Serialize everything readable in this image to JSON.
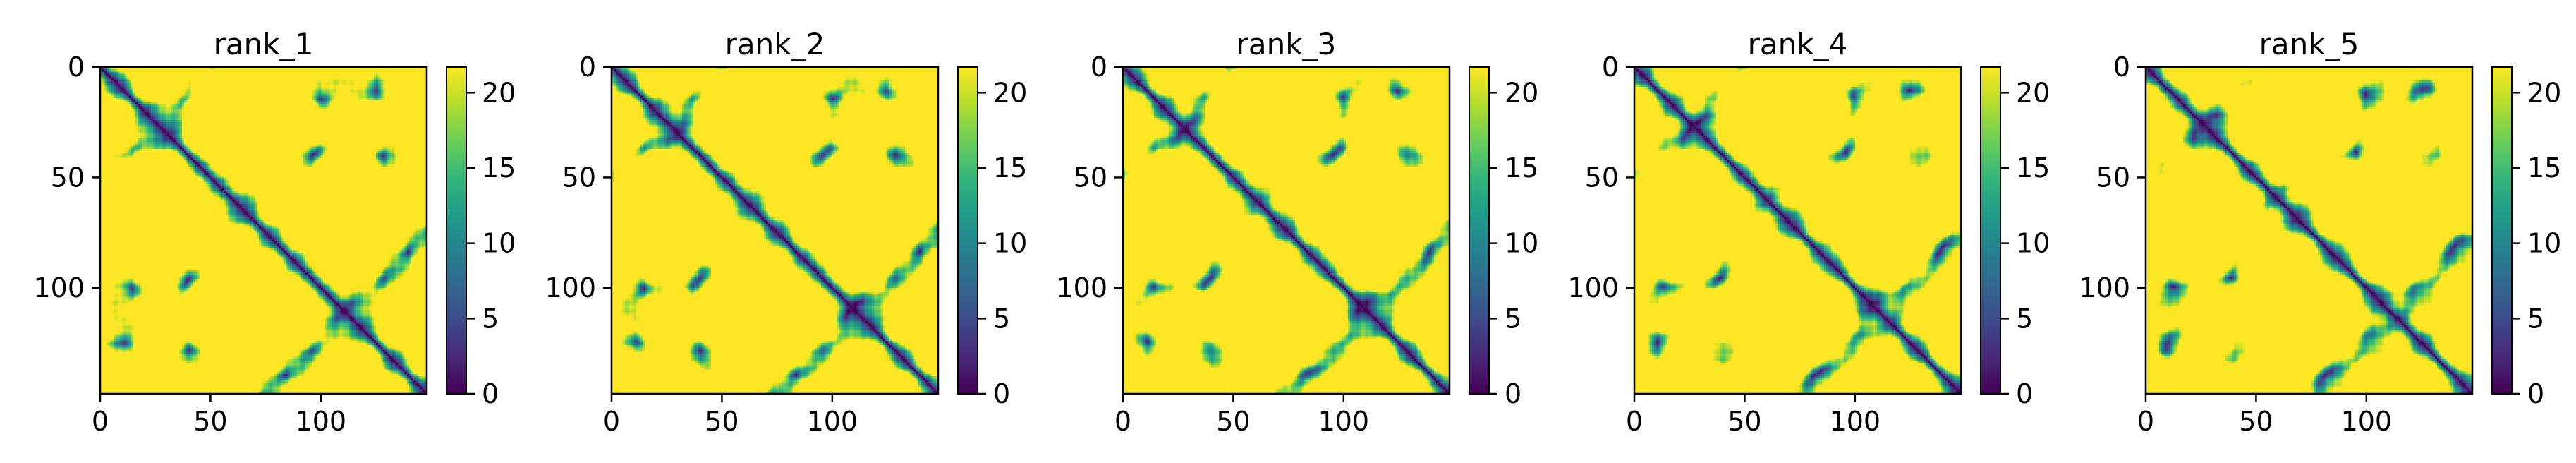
{
  "figure": {
    "panel_count": 5
  },
  "chart_data": [
    {
      "type": "heatmap",
      "title": "rank_1",
      "xlabel": "",
      "ylabel": "",
      "xlim": [
        0,
        148
      ],
      "ylim": [
        148,
        0
      ],
      "xticks": [
        0,
        50,
        100
      ],
      "yticks": [
        0,
        50,
        100
      ],
      "colorbar": {
        "min": 0,
        "max": 21.7,
        "ticks": [
          0,
          5,
          10,
          15,
          20
        ],
        "colormap": "viridis"
      },
      "description_values": "symmetric pairwise distance map, ~0 on diagonal, saturating at ~22"
    },
    {
      "type": "heatmap",
      "title": "rank_2",
      "xlabel": "",
      "ylabel": "",
      "xlim": [
        0,
        148
      ],
      "ylim": [
        148,
        0
      ],
      "xticks": [
        0,
        50,
        100
      ],
      "yticks": [
        0,
        50,
        100
      ],
      "colorbar": {
        "min": 0,
        "max": 21.7,
        "ticks": [
          0,
          5,
          10,
          15,
          20
        ],
        "colormap": "viridis"
      }
    },
    {
      "type": "heatmap",
      "title": "rank_3",
      "xlabel": "",
      "ylabel": "",
      "xlim": [
        0,
        148
      ],
      "ylim": [
        148,
        0
      ],
      "xticks": [
        0,
        50,
        100
      ],
      "yticks": [
        0,
        50,
        100
      ],
      "colorbar": {
        "min": 0,
        "max": 21.7,
        "ticks": [
          0,
          5,
          10,
          15,
          20
        ],
        "colormap": "viridis"
      }
    },
    {
      "type": "heatmap",
      "title": "rank_4",
      "xlabel": "",
      "ylabel": "",
      "xlim": [
        0,
        148
      ],
      "ylim": [
        148,
        0
      ],
      "xticks": [
        0,
        50,
        100
      ],
      "yticks": [
        0,
        50,
        100
      ],
      "colorbar": {
        "min": 0,
        "max": 21.7,
        "ticks": [
          0,
          5,
          10,
          15,
          20
        ],
        "colormap": "viridis"
      }
    },
    {
      "type": "heatmap",
      "title": "rank_5",
      "xlabel": "",
      "ylabel": "",
      "xlim": [
        0,
        148
      ],
      "ylim": [
        148,
        0
      ],
      "xticks": [
        0,
        50,
        100
      ],
      "yticks": [
        0,
        50,
        100
      ],
      "colorbar": {
        "min": 0,
        "max": 21.7,
        "ticks": [
          0,
          5,
          10,
          15,
          20
        ],
        "colormap": "viridis"
      }
    }
  ]
}
